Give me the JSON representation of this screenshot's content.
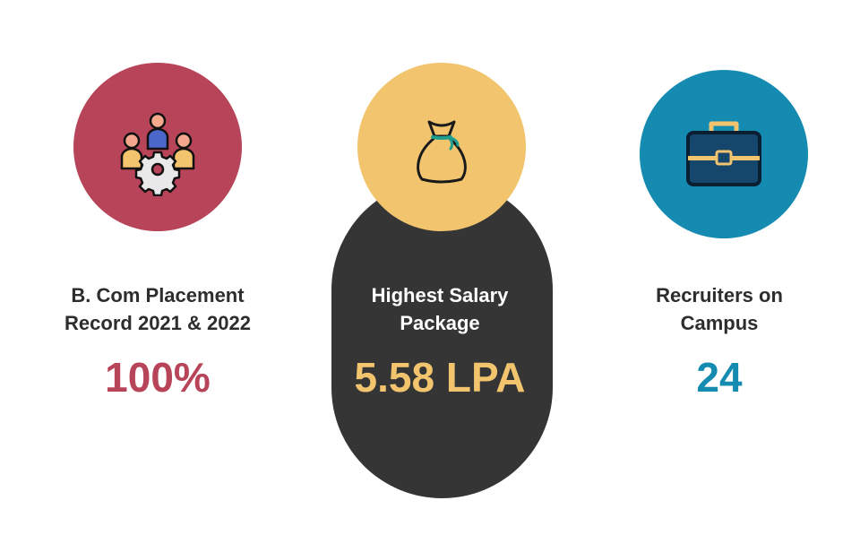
{
  "stats": [
    {
      "label_line1": "B. Com Placement",
      "label_line2": "Record 2021 & 2022",
      "value": "100%",
      "icon": "team-gear-icon",
      "circle_color": "#b84459",
      "value_color": "#b84459"
    },
    {
      "label_line1": "Highest Salary",
      "label_line2": "Package",
      "value": "5.58 LPA",
      "icon": "money-bag-icon",
      "circle_color": "#f2c46e",
      "value_color": "#f2c46e",
      "card_color": "#353535"
    },
    {
      "label_line1": "Recruiters on",
      "label_line2": "Campus",
      "value": "24",
      "icon": "briefcase-icon",
      "circle_color": "#168bb2",
      "value_color": "#168bb2"
    }
  ]
}
